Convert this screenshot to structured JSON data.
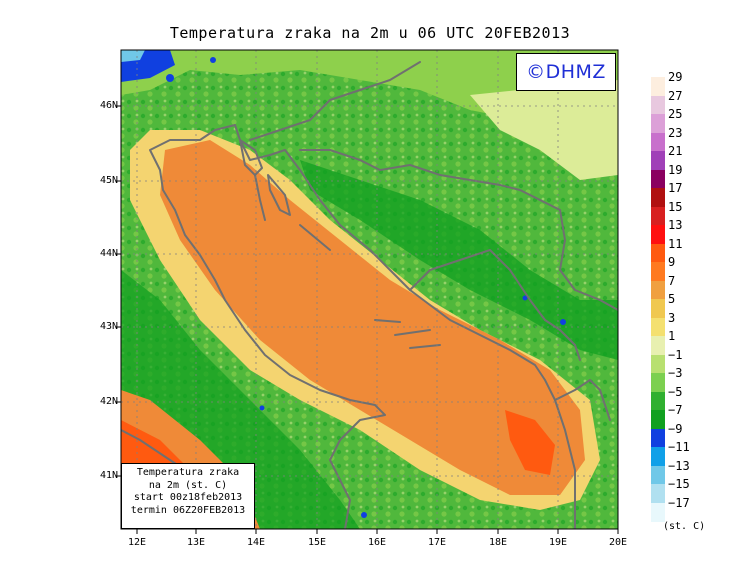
{
  "title": "Temperatura zraka na 2m u 06 UTC 20FEB2013",
  "watermark": "©DHMZ",
  "info_box": {
    "line1": "Temperatura zraka",
    "line2": "na 2m (st. C)",
    "line3": "start 00z18feb2013",
    "line4": "termin 06Z20FEB2013"
  },
  "lat_labels": [
    "46N",
    "45N",
    "44N",
    "43N",
    "42N",
    "41N"
  ],
  "lon_labels": [
    "12E",
    "13E",
    "14E",
    "15E",
    "16E",
    "17E",
    "18E",
    "19E",
    "20E"
  ],
  "legend": {
    "labels": [
      "29",
      "27",
      "25",
      "23",
      "21",
      "19",
      "17",
      "15",
      "13",
      "11",
      "9",
      "7",
      "5",
      "3",
      "1",
      "−1",
      "−3",
      "−5",
      "−7",
      "−9",
      "−11",
      "−13",
      "−15",
      "−17"
    ],
    "colors": [
      "#fdeedf",
      "#e8c8df",
      "#dca0d8",
      "#c870cc",
      "#a040b8",
      "#8a0060",
      "#b01010",
      "#d82020",
      "#ff1010",
      "#ff5a10",
      "#ff7a20",
      "#f0a040",
      "#f0c850",
      "#f4e070",
      "#e8f0b0",
      "#b8e070",
      "#7cd050",
      "#30b030",
      "#10a020",
      "#1040e0",
      "#10a0e8",
      "#70c8e8",
      "#b0e0f0",
      "#e8f8fc"
    ],
    "unit": "(st. C)"
  },
  "map_colors": {
    "sea_warm": "#ef8a38",
    "sea_mid": "#f0a858",
    "coast_warm": "#f4d470",
    "land_light": "#dcec98",
    "land_green": "#8ed04c",
    "land_mid": "#50b83c",
    "land_dark": "#10a020",
    "cold_blue": "#1040e0",
    "border": "#707070"
  }
}
